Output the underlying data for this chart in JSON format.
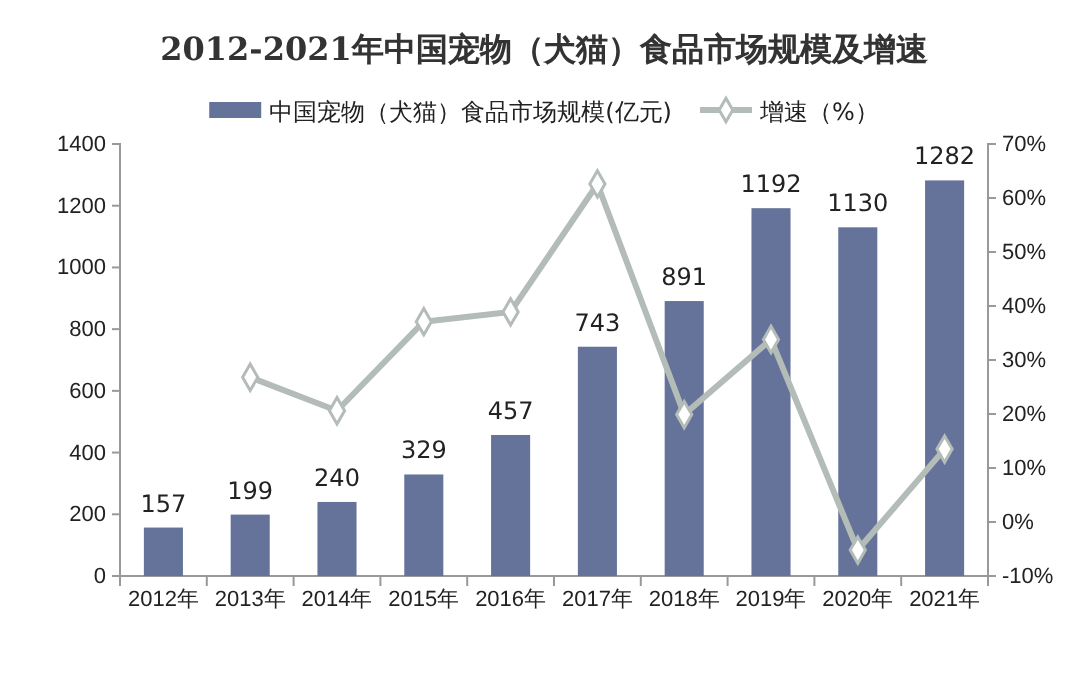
{
  "chart_data": {
    "type": "bar",
    "title": "2012-2021年中国宠物（犬猫）食品市场规模及增速",
    "categories": [
      "2012年",
      "2013年",
      "2014年",
      "2015年",
      "2016年",
      "2017年",
      "2018年",
      "2019年",
      "2020年",
      "2021年"
    ],
    "series": [
      {
        "name": "中国宠物（犬猫）食品市场规模(亿元)",
        "color": "#65739a",
        "values": [
          157,
          199,
          240,
          329,
          457,
          743,
          891,
          1192,
          1130,
          1282
        ],
        "data_labels": true
      },
      {
        "name": "增速（%）",
        "type": "line",
        "axis": "y2",
        "color": "#b4bcb8",
        "marker": "diamond",
        "values": [
          null,
          26.8,
          20.6,
          37.1,
          38.9,
          62.6,
          19.9,
          33.8,
          -5.2,
          13.5
        ]
      }
    ],
    "ylim": [
      0,
      1400
    ],
    "yticks": [
      0,
      200,
      400,
      600,
      800,
      1000,
      1200,
      1400
    ],
    "y2lim": [
      -10,
      70
    ],
    "y2ticks": [
      {
        "value": -10,
        "label": "-10%"
      },
      {
        "value": 0,
        "label": "0%"
      },
      {
        "value": 10,
        "label": "10%"
      },
      {
        "value": 20,
        "label": "20%"
      },
      {
        "value": 30,
        "label": "30%"
      },
      {
        "value": 40,
        "label": "40%"
      },
      {
        "value": 50,
        "label": "50%"
      },
      {
        "value": 60,
        "label": "60%"
      },
      {
        "value": 70,
        "label": "70%"
      }
    ],
    "legend": "top",
    "grid": false
  }
}
